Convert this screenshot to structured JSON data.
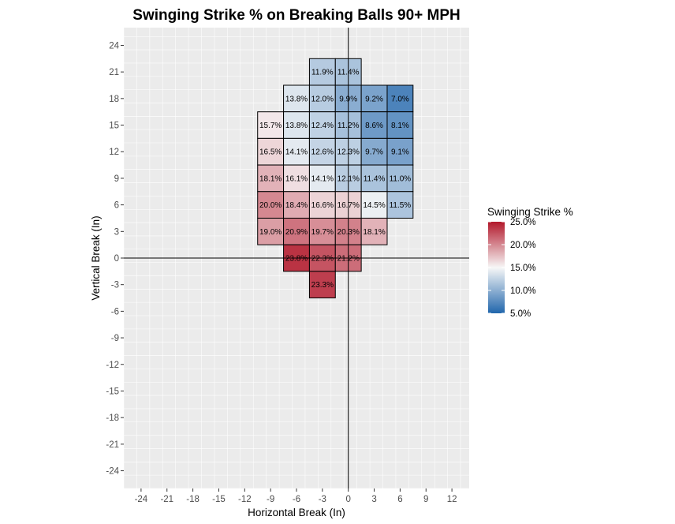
{
  "chart_data": {
    "type": "heatmap",
    "title": "Swinging Strike % on Breaking Balls 90+ MPH",
    "xlabel": "Horizontal Break (In)",
    "ylabel": "Vertical Break (In)",
    "xlim": [
      -26,
      14
    ],
    "ylim": [
      -26,
      26
    ],
    "bin_width": 3,
    "x_ticks": [
      -24,
      -21,
      -18,
      -15,
      -12,
      -9,
      -6,
      -3,
      0,
      3,
      6,
      9,
      12
    ],
    "y_ticks": [
      24,
      21,
      18,
      15,
      12,
      9,
      6,
      3,
      0,
      -3,
      -6,
      -9,
      -12,
      -15,
      -18,
      -21,
      -24
    ],
    "grid": true,
    "reference_lines": {
      "x": 0,
      "y": 0
    },
    "cells": [
      {
        "x": -3,
        "y": 21,
        "value": 11.9,
        "label": "11.9%"
      },
      {
        "x": 0,
        "y": 21,
        "value": 11.4,
        "label": "11.4%"
      },
      {
        "x": -6,
        "y": 18,
        "value": 13.8,
        "label": "13.8%"
      },
      {
        "x": -3,
        "y": 18,
        "value": 12.0,
        "label": "12.0%"
      },
      {
        "x": 0,
        "y": 18,
        "value": 9.9,
        "label": "9.9%"
      },
      {
        "x": 3,
        "y": 18,
        "value": 9.2,
        "label": "9.2%"
      },
      {
        "x": 6,
        "y": 18,
        "value": 7.0,
        "label": "7.0%"
      },
      {
        "x": -9,
        "y": 15,
        "value": 15.7,
        "label": "15.7%"
      },
      {
        "x": -6,
        "y": 15,
        "value": 13.8,
        "label": "13.8%"
      },
      {
        "x": -3,
        "y": 15,
        "value": 12.4,
        "label": "12.4%"
      },
      {
        "x": 0,
        "y": 15,
        "value": 11.2,
        "label": "11.2%"
      },
      {
        "x": 3,
        "y": 15,
        "value": 8.6,
        "label": "8.6%"
      },
      {
        "x": 6,
        "y": 15,
        "value": 8.1,
        "label": "8.1%"
      },
      {
        "x": -9,
        "y": 12,
        "value": 16.5,
        "label": "16.5%"
      },
      {
        "x": -6,
        "y": 12,
        "value": 14.1,
        "label": "14.1%"
      },
      {
        "x": -3,
        "y": 12,
        "value": 12.6,
        "label": "12.6%"
      },
      {
        "x": 0,
        "y": 12,
        "value": 12.3,
        "label": "12.3%"
      },
      {
        "x": 3,
        "y": 12,
        "value": 9.7,
        "label": "9.7%"
      },
      {
        "x": 6,
        "y": 12,
        "value": 9.1,
        "label": "9.1%"
      },
      {
        "x": -9,
        "y": 9,
        "value": 18.1,
        "label": "18.1%"
      },
      {
        "x": -6,
        "y": 9,
        "value": 16.1,
        "label": "16.1%"
      },
      {
        "x": -3,
        "y": 9,
        "value": 14.1,
        "label": "14.1%"
      },
      {
        "x": 0,
        "y": 9,
        "value": 12.1,
        "label": "12.1%"
      },
      {
        "x": 3,
        "y": 9,
        "value": 11.4,
        "label": "11.4%"
      },
      {
        "x": 6,
        "y": 9,
        "value": 11.0,
        "label": "11.0%"
      },
      {
        "x": -9,
        "y": 6,
        "value": 20.0,
        "label": "20.0%"
      },
      {
        "x": -6,
        "y": 6,
        "value": 18.4,
        "label": "18.4%"
      },
      {
        "x": -3,
        "y": 6,
        "value": 16.6,
        "label": "16.6%"
      },
      {
        "x": 0,
        "y": 6,
        "value": 16.7,
        "label": "16.7%"
      },
      {
        "x": 3,
        "y": 6,
        "value": 14.5,
        "label": "14.5%"
      },
      {
        "x": 6,
        "y": 6,
        "value": 11.5,
        "label": "11.5%"
      },
      {
        "x": -9,
        "y": 3,
        "value": 19.0,
        "label": "19.0%"
      },
      {
        "x": -6,
        "y": 3,
        "value": 20.9,
        "label": "20.9%"
      },
      {
        "x": -3,
        "y": 3,
        "value": 19.7,
        "label": "19.7%"
      },
      {
        "x": 0,
        "y": 3,
        "value": 20.3,
        "label": "20.3%"
      },
      {
        "x": 3,
        "y": 3,
        "value": 18.1,
        "label": "18.1%"
      },
      {
        "x": -6,
        "y": 0,
        "value": 23.8,
        "label": "23.8%"
      },
      {
        "x": -3,
        "y": 0,
        "value": 22.3,
        "label": "22.3%"
      },
      {
        "x": 0,
        "y": 0,
        "value": 21.2,
        "label": "21.2%"
      },
      {
        "x": -3,
        "y": -3,
        "value": 23.3,
        "label": "23.3%"
      }
    ],
    "legend": {
      "title": "Swinging Strike %",
      "placement": "right",
      "range": [
        5,
        25
      ],
      "midpoint": 15,
      "ticks": [
        25,
        20,
        15,
        10,
        5
      ],
      "tick_labels": [
        "25.0%",
        "20.0%",
        "15.0%",
        "10.0%",
        "5.0%"
      ],
      "colors": {
        "low": "#2166ac",
        "mid": "#f7f7f7",
        "high": "#b2182b"
      }
    }
  }
}
